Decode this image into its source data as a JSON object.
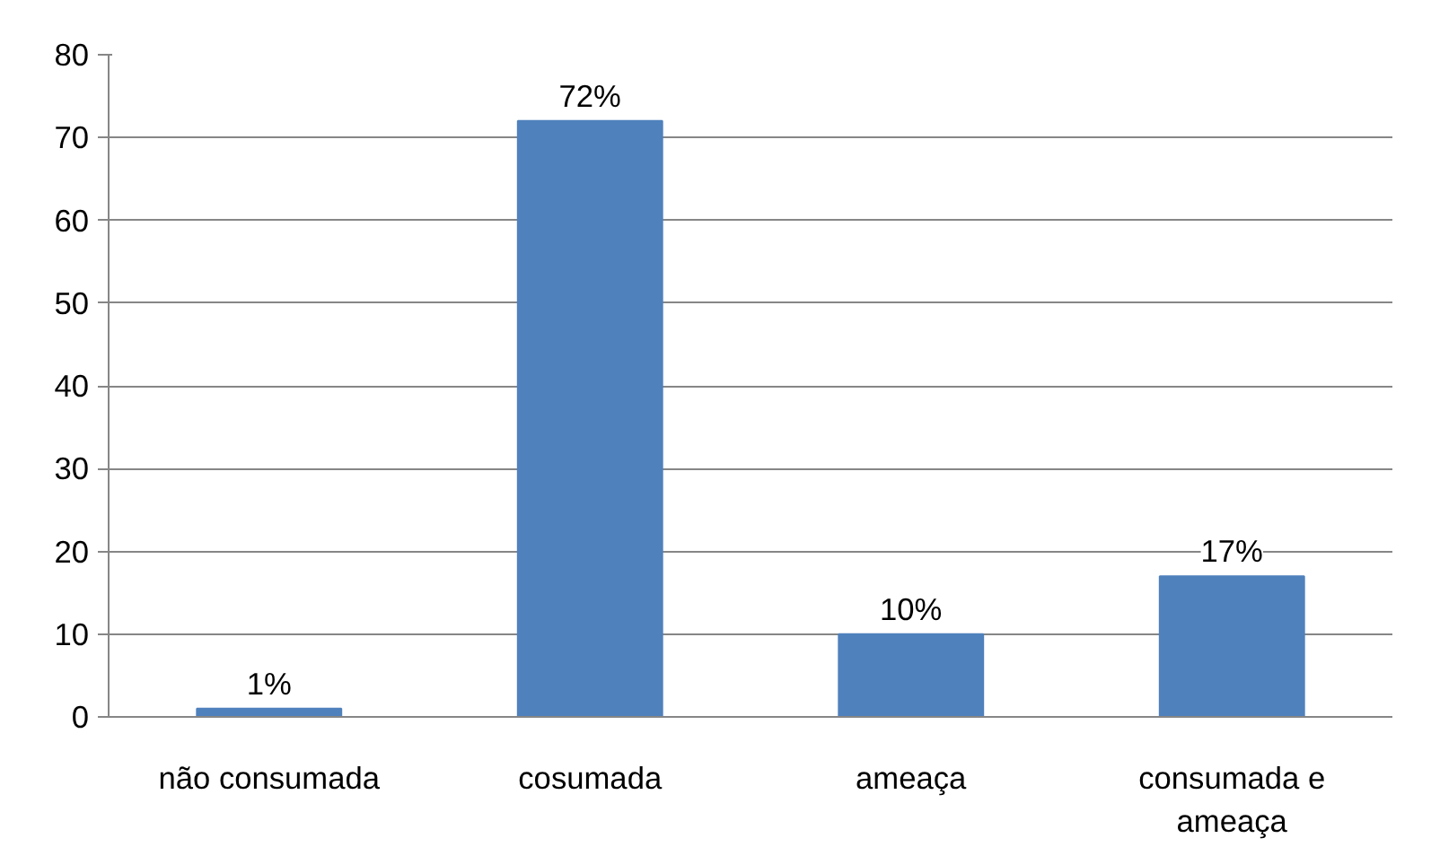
{
  "chart_data": {
    "type": "bar",
    "categories": [
      "não consumada",
      "cosumada",
      "ameaça",
      "consumada e ameaça"
    ],
    "values": [
      1,
      72,
      10,
      17
    ],
    "color": "#4f81bd",
    "value_labels": [
      "1%",
      "72%",
      "10%",
      "17%"
    ],
    "ylim": [
      0,
      80
    ],
    "yticks": [
      0,
      10,
      20,
      30,
      40,
      50,
      60,
      70,
      80
    ],
    "grid": "y"
  }
}
